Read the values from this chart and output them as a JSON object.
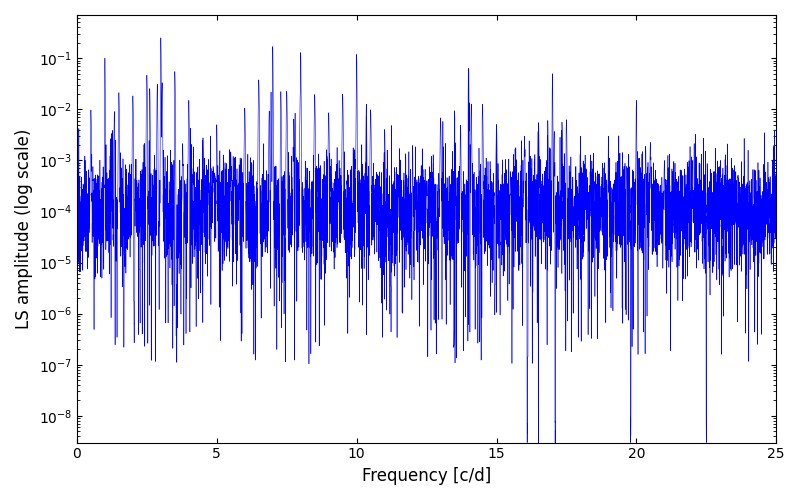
{
  "xlabel": "Frequency [c/d]",
  "ylabel": "LS amplitude (log scale)",
  "title": "",
  "line_color": "blue",
  "freq_min": 0.0,
  "freq_max": 25.0,
  "ylim_min": 3e-09,
  "ylim_max": 0.7,
  "figsize": [
    8.0,
    5.0
  ],
  "dpi": 100,
  "background": "#ffffff",
  "seed": 12345,
  "n_points": 8000
}
